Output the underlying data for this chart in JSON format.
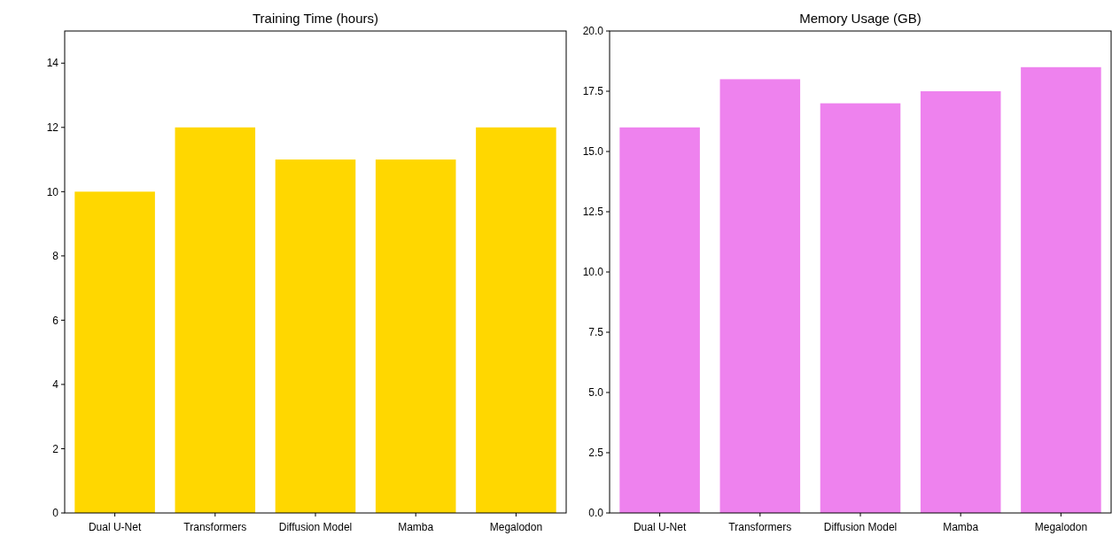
{
  "chart_data": [
    {
      "type": "bar",
      "title": "Training Time (hours)",
      "categories": [
        "Dual U-Net",
        "Transformers",
        "Diffusion Model",
        "Mamba",
        "Megalodon"
      ],
      "values": [
        10,
        12,
        11,
        11,
        12
      ],
      "color": "#ffd700",
      "ylim": [
        0,
        15
      ],
      "yticks": [
        0,
        2,
        4,
        6,
        8,
        10,
        12,
        14
      ]
    },
    {
      "type": "bar",
      "title": "Memory Usage (GB)",
      "categories": [
        "Dual U-Net",
        "Transformers",
        "Diffusion Model",
        "Mamba",
        "Megalodon"
      ],
      "values": [
        16,
        18,
        17,
        17.5,
        18.5
      ],
      "color": "#ee82ee",
      "ylim": [
        0,
        20
      ],
      "yticks": [
        {
          "value": 0,
          "label": "0.0"
        },
        {
          "value": 2.5,
          "label": "2.5"
        },
        {
          "value": 5,
          "label": "5.0"
        },
        {
          "value": 7.5,
          "label": "7.5"
        },
        {
          "value": 10,
          "label": "10.0"
        },
        {
          "value": 12.5,
          "label": "12.5"
        },
        {
          "value": 15,
          "label": "15.0"
        },
        {
          "value": 17.5,
          "label": "17.5"
        },
        {
          "value": 20,
          "label": "20.0"
        }
      ]
    }
  ]
}
